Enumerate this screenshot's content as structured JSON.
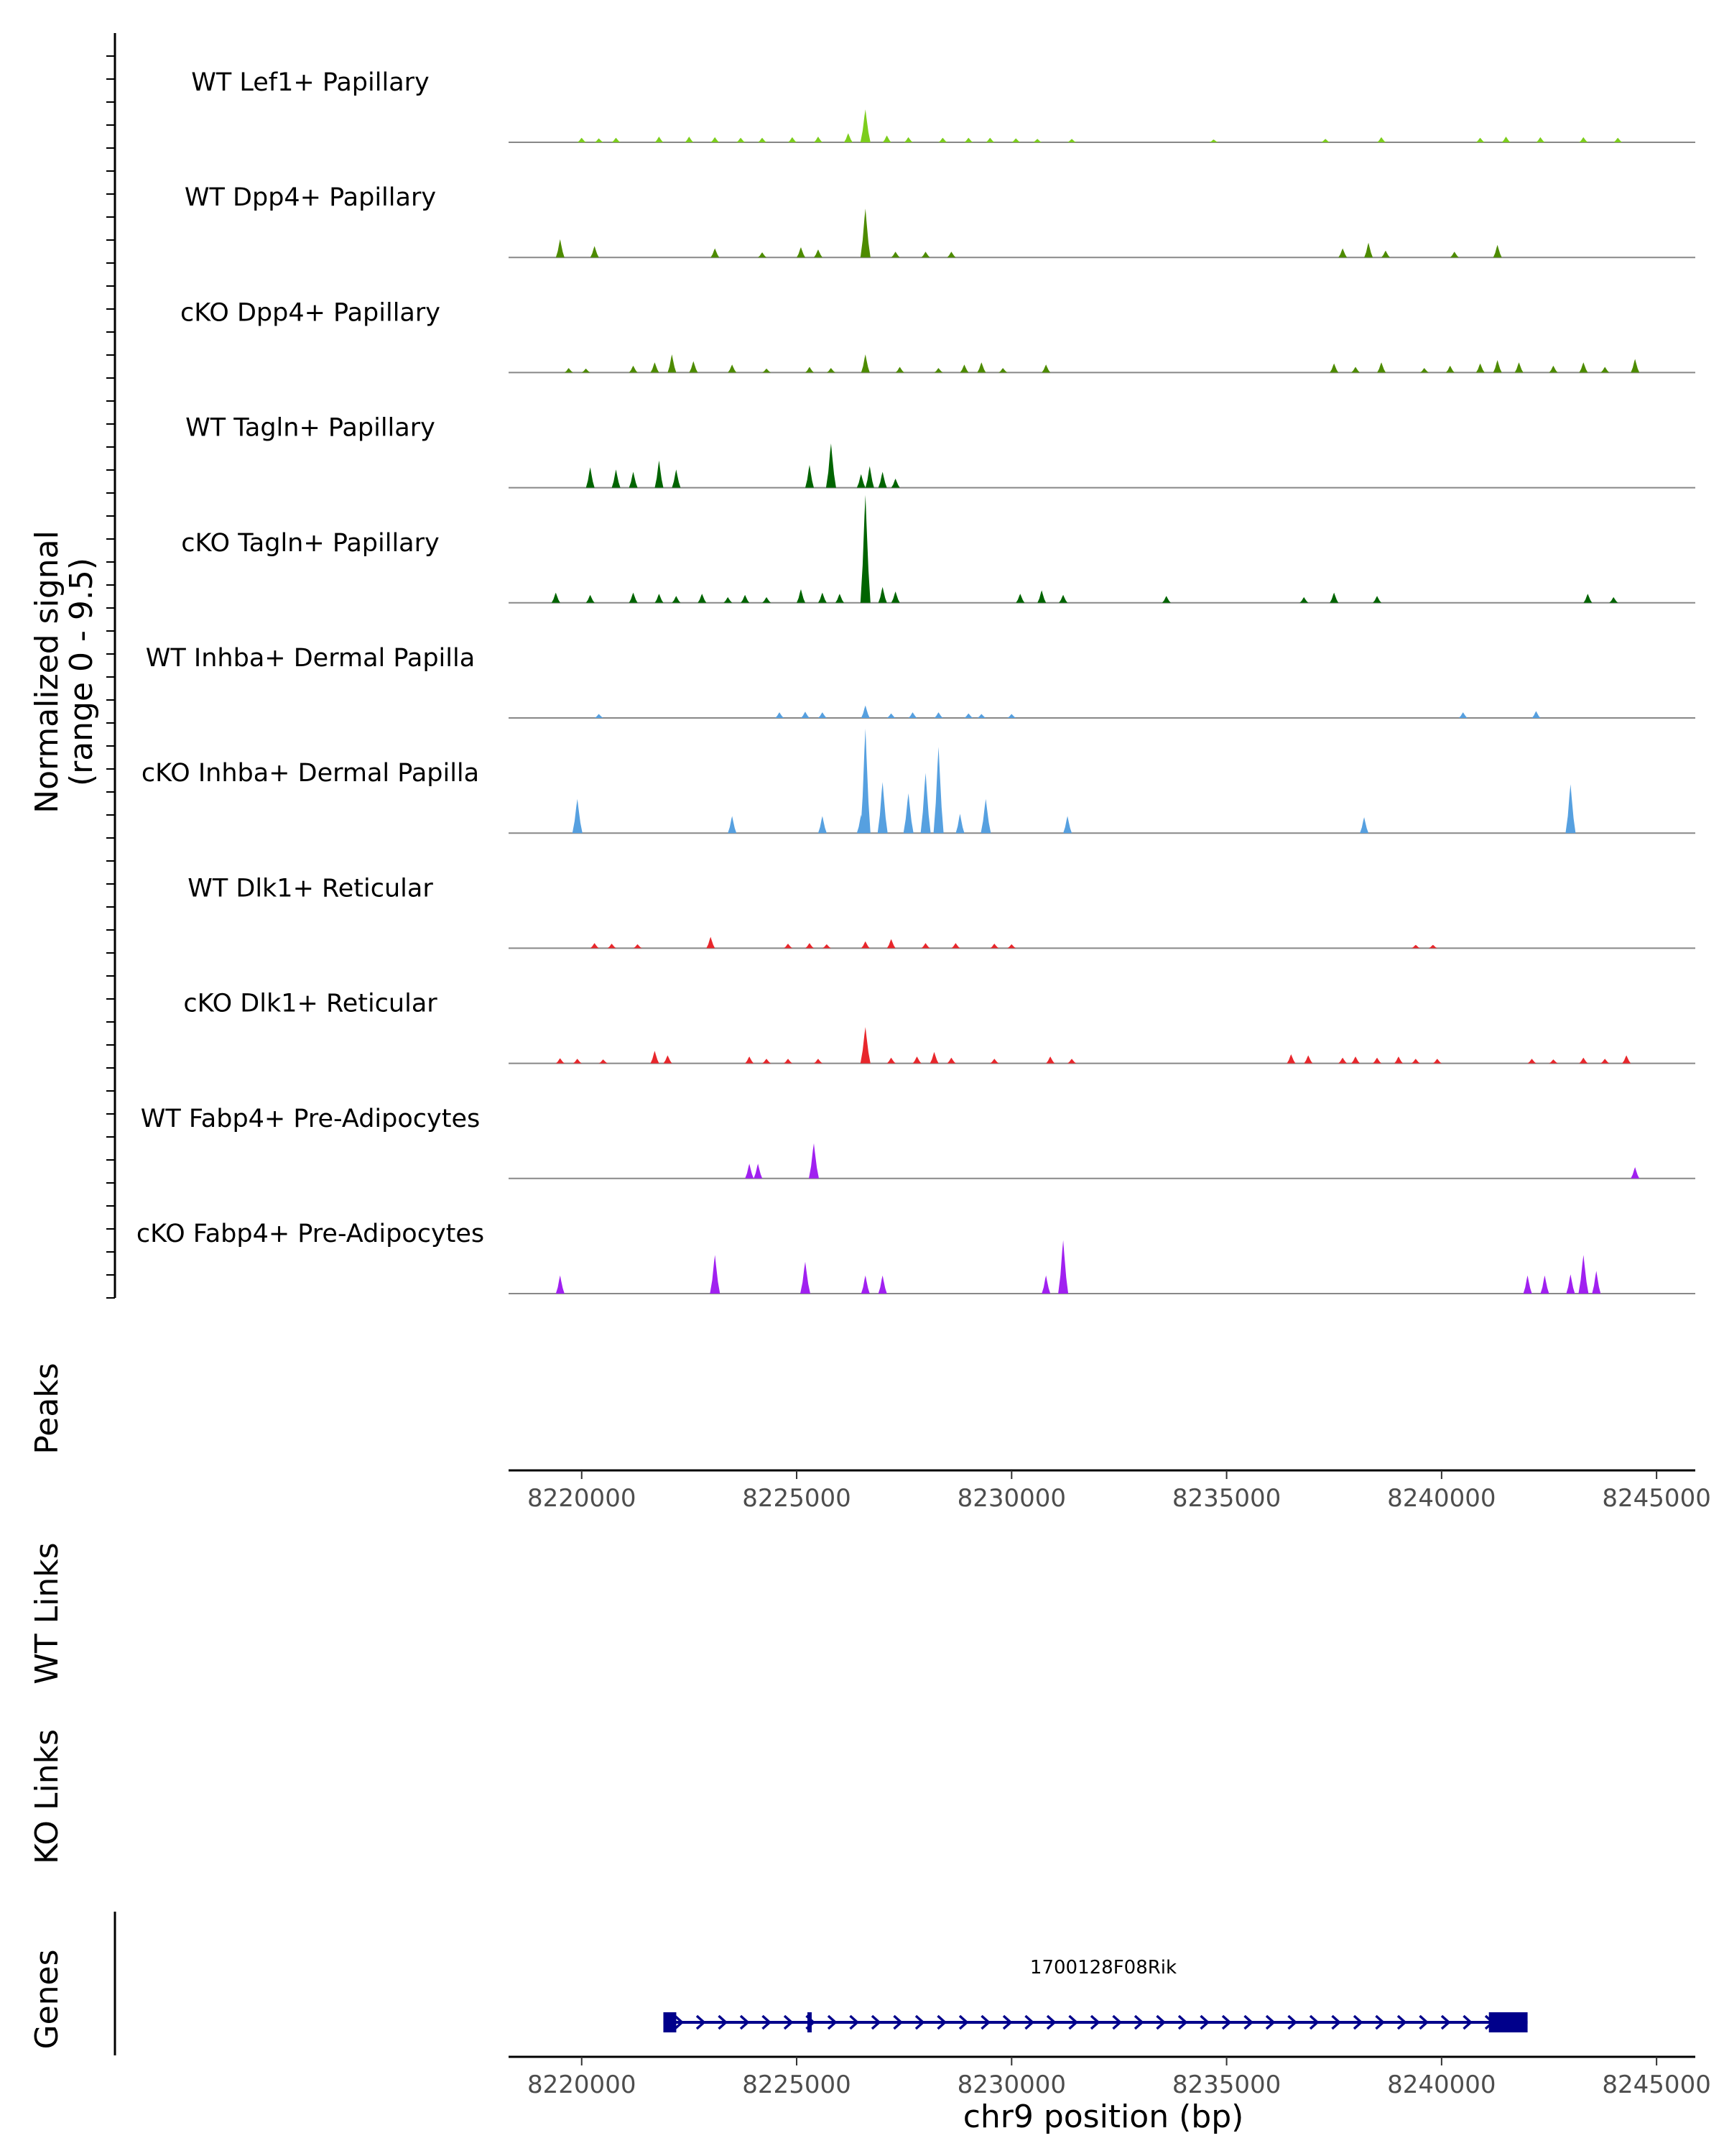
{
  "chart_data": {
    "type": "area",
    "title": "",
    "y_title": "Normalized signal",
    "y_subtitle": "(range 0 - 9.5)",
    "y_range": [
      0,
      9.5
    ],
    "xlabel": "chr9 position (bp)",
    "x_range": [
      8218300,
      8245900
    ],
    "x_ticks": [
      8220000,
      8225000,
      8230000,
      8235000,
      8240000,
      8245000
    ],
    "x_tick_labels": [
      "8220000",
      "8225000",
      "8230000",
      "8235000",
      "8240000",
      "8245000"
    ],
    "tracks": [
      {
        "name": "WT Lef1+ Papillary",
        "color": "#7CCD1C",
        "peaks": [
          [
            8220000,
            0.4
          ],
          [
            8220400,
            0.35
          ],
          [
            8220800,
            0.4
          ],
          [
            8221800,
            0.5
          ],
          [
            8222500,
            0.5
          ],
          [
            8223100,
            0.45
          ],
          [
            8223700,
            0.4
          ],
          [
            8224200,
            0.4
          ],
          [
            8224900,
            0.45
          ],
          [
            8225500,
            0.5
          ],
          [
            8226200,
            0.8
          ],
          [
            8226600,
            2.9
          ],
          [
            8227100,
            0.6
          ],
          [
            8227600,
            0.45
          ],
          [
            8228400,
            0.4
          ],
          [
            8229000,
            0.4
          ],
          [
            8229500,
            0.4
          ],
          [
            8230100,
            0.35
          ],
          [
            8230600,
            0.3
          ],
          [
            8231400,
            0.3
          ],
          [
            8234700,
            0.25
          ],
          [
            8237300,
            0.3
          ],
          [
            8238600,
            0.45
          ],
          [
            8240900,
            0.4
          ],
          [
            8241500,
            0.5
          ],
          [
            8242300,
            0.45
          ],
          [
            8243300,
            0.45
          ],
          [
            8244100,
            0.4
          ]
        ]
      },
      {
        "name": "WT Dpp4+ Papillary",
        "color": "#4D8B00",
        "peaks": [
          [
            8219500,
            1.6
          ],
          [
            8220300,
            1.0
          ],
          [
            8223100,
            0.8
          ],
          [
            8224200,
            0.45
          ],
          [
            8225100,
            0.9
          ],
          [
            8225500,
            0.7
          ],
          [
            8226600,
            4.3
          ],
          [
            8227300,
            0.5
          ],
          [
            8228000,
            0.5
          ],
          [
            8228600,
            0.5
          ],
          [
            8237700,
            0.8
          ],
          [
            8238300,
            1.3
          ],
          [
            8238700,
            0.6
          ],
          [
            8240300,
            0.5
          ],
          [
            8241300,
            1.1
          ]
        ]
      },
      {
        "name": "cKO Dpp4+ Papillary",
        "color": "#4D8B00",
        "peaks": [
          [
            8219700,
            0.4
          ],
          [
            8220100,
            0.35
          ],
          [
            8221200,
            0.6
          ],
          [
            8221700,
            0.9
          ],
          [
            8222100,
            1.6
          ],
          [
            8222600,
            1.0
          ],
          [
            8223500,
            0.7
          ],
          [
            8224300,
            0.35
          ],
          [
            8225300,
            0.5
          ],
          [
            8225800,
            0.4
          ],
          [
            8226600,
            1.6
          ],
          [
            8227400,
            0.5
          ],
          [
            8228300,
            0.4
          ],
          [
            8228900,
            0.7
          ],
          [
            8229300,
            0.9
          ],
          [
            8229800,
            0.4
          ],
          [
            8230800,
            0.7
          ],
          [
            8237500,
            0.8
          ],
          [
            8238000,
            0.5
          ],
          [
            8238600,
            0.9
          ],
          [
            8239600,
            0.4
          ],
          [
            8240200,
            0.6
          ],
          [
            8240900,
            0.8
          ],
          [
            8241300,
            1.1
          ],
          [
            8241800,
            0.9
          ],
          [
            8242600,
            0.6
          ],
          [
            8243300,
            0.9
          ],
          [
            8243800,
            0.5
          ],
          [
            8244500,
            1.2
          ]
        ]
      },
      {
        "name": "WT Tagln+ Papillary",
        "color": "#006400",
        "peaks": [
          [
            8220200,
            1.8
          ],
          [
            8220800,
            1.6
          ],
          [
            8221200,
            1.4
          ],
          [
            8221800,
            2.4
          ],
          [
            8222200,
            1.6
          ],
          [
            8225300,
            2.0
          ],
          [
            8225800,
            3.9
          ],
          [
            8226500,
            1.2
          ],
          [
            8226700,
            1.9
          ],
          [
            8227000,
            1.4
          ],
          [
            8227300,
            0.8
          ]
        ]
      },
      {
        "name": "cKO Tagln+ Papillary",
        "color": "#006400",
        "peaks": [
          [
            8219400,
            0.9
          ],
          [
            8220200,
            0.7
          ],
          [
            8221200,
            0.9
          ],
          [
            8221800,
            0.8
          ],
          [
            8222200,
            0.6
          ],
          [
            8222800,
            0.8
          ],
          [
            8223400,
            0.5
          ],
          [
            8223800,
            0.7
          ],
          [
            8224300,
            0.5
          ],
          [
            8225100,
            1.2
          ],
          [
            8225600,
            0.9
          ],
          [
            8226000,
            0.8
          ],
          [
            8226600,
            9.5
          ],
          [
            8227000,
            1.4
          ],
          [
            8227300,
            1.0
          ],
          [
            8230200,
            0.8
          ],
          [
            8230700,
            1.1
          ],
          [
            8231200,
            0.7
          ],
          [
            8233600,
            0.6
          ],
          [
            8236800,
            0.5
          ],
          [
            8237500,
            0.9
          ],
          [
            8238500,
            0.6
          ],
          [
            8243400,
            0.8
          ],
          [
            8244000,
            0.5
          ]
        ]
      },
      {
        "name": "WT Inhba+ Dermal Papilla",
        "color": "#56A0E0",
        "peaks": [
          [
            8220400,
            0.35
          ],
          [
            8224600,
            0.5
          ],
          [
            8225200,
            0.55
          ],
          [
            8225600,
            0.5
          ],
          [
            8226600,
            1.1
          ],
          [
            8227200,
            0.4
          ],
          [
            8227700,
            0.5
          ],
          [
            8228300,
            0.5
          ],
          [
            8229000,
            0.4
          ],
          [
            8229300,
            0.35
          ],
          [
            8230000,
            0.35
          ],
          [
            8240500,
            0.5
          ],
          [
            8242200,
            0.6
          ]
        ]
      },
      {
        "name": "cKO Inhba+ Dermal Papilla",
        "color": "#56A0E0",
        "peaks": [
          [
            8219900,
            3.0
          ],
          [
            8223500,
            1.5
          ],
          [
            8225600,
            1.5
          ],
          [
            8226500,
            1.6
          ],
          [
            8226600,
            9.2
          ],
          [
            8227000,
            4.5
          ],
          [
            8227600,
            3.5
          ],
          [
            8228000,
            5.3
          ],
          [
            8228300,
            7.6
          ],
          [
            8228800,
            1.7
          ],
          [
            8229400,
            3.0
          ],
          [
            8231300,
            1.5
          ],
          [
            8238200,
            1.4
          ],
          [
            8243000,
            4.3
          ]
        ]
      },
      {
        "name": "WT Dlk1+ Reticular",
        "color": "#E8272C",
        "peaks": [
          [
            8220300,
            0.45
          ],
          [
            8220700,
            0.4
          ],
          [
            8221300,
            0.35
          ],
          [
            8223000,
            1.0
          ],
          [
            8224800,
            0.4
          ],
          [
            8225300,
            0.45
          ],
          [
            8225700,
            0.35
          ],
          [
            8226600,
            0.6
          ],
          [
            8227200,
            0.8
          ],
          [
            8228000,
            0.45
          ],
          [
            8228700,
            0.45
          ],
          [
            8229600,
            0.4
          ],
          [
            8230000,
            0.35
          ],
          [
            8239400,
            0.3
          ],
          [
            8239800,
            0.3
          ]
        ]
      },
      {
        "name": "cKO Dlk1+ Reticular",
        "color": "#E8272C",
        "peaks": [
          [
            8219500,
            0.45
          ],
          [
            8219900,
            0.4
          ],
          [
            8220500,
            0.35
          ],
          [
            8221700,
            1.1
          ],
          [
            8222000,
            0.7
          ],
          [
            8223900,
            0.6
          ],
          [
            8224300,
            0.4
          ],
          [
            8224800,
            0.4
          ],
          [
            8225500,
            0.4
          ],
          [
            8226600,
            3.2
          ],
          [
            8227200,
            0.5
          ],
          [
            8227800,
            0.6
          ],
          [
            8228200,
            1.0
          ],
          [
            8228600,
            0.5
          ],
          [
            8229600,
            0.4
          ],
          [
            8230900,
            0.6
          ],
          [
            8231400,
            0.4
          ],
          [
            8236500,
            0.8
          ],
          [
            8236900,
            0.7
          ],
          [
            8237700,
            0.5
          ],
          [
            8238000,
            0.6
          ],
          [
            8238500,
            0.5
          ],
          [
            8239000,
            0.6
          ],
          [
            8239400,
            0.4
          ],
          [
            8239900,
            0.4
          ],
          [
            8242100,
            0.4
          ],
          [
            8242600,
            0.35
          ],
          [
            8243300,
            0.5
          ],
          [
            8243800,
            0.4
          ],
          [
            8244300,
            0.7
          ]
        ]
      },
      {
        "name": "WT Fabp4+ Pre-Adipocytes",
        "color": "#A020F0",
        "peaks": [
          [
            8223900,
            1.3
          ],
          [
            8224100,
            1.3
          ],
          [
            8225400,
            3.1
          ],
          [
            8244500,
            1.0
          ]
        ]
      },
      {
        "name": "cKO Fabp4+ Pre-Adipocytes",
        "color": "#A020F0",
        "peaks": [
          [
            8219500,
            1.6
          ],
          [
            8223100,
            3.4
          ],
          [
            8225200,
            2.8
          ],
          [
            8226600,
            1.6
          ],
          [
            8227000,
            1.6
          ],
          [
            8230800,
            1.6
          ],
          [
            8231200,
            4.7
          ],
          [
            8242000,
            1.6
          ],
          [
            8242400,
            1.6
          ],
          [
            8243000,
            1.7
          ],
          [
            8243300,
            3.4
          ],
          [
            8243600,
            2.0
          ]
        ]
      }
    ],
    "annotation_tracks": [
      {
        "name": "Peaks"
      },
      {
        "name": "WT Links"
      },
      {
        "name": "KO Links"
      },
      {
        "name": "Genes"
      }
    ],
    "gene": {
      "name": "1700128F08Rik",
      "color": "#00008B",
      "start": 8221900,
      "end": 8242000,
      "strand": "+",
      "exons": [
        [
          8221900,
          8222200
        ],
        [
          8225250,
          8225350
        ],
        [
          8241100,
          8242000
        ]
      ]
    }
  }
}
